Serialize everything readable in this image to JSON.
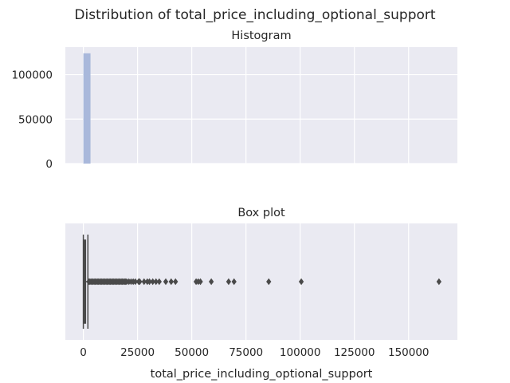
{
  "chart_data": [
    {
      "type": "histogram",
      "suptitle": "Distribution of total_price_including_optional_support",
      "title": "Histogram",
      "bin_start": 0,
      "bin_end": 3300,
      "count": 124000,
      "bar_color": "#a9b8db",
      "y_ticks": [
        0,
        50000,
        100000
      ],
      "ylim": [
        0,
        131000
      ],
      "xlim": [
        -8300,
        172500
      ],
      "grid": true,
      "x_ticks_shared": [
        0,
        25000,
        50000,
        75000,
        100000,
        125000,
        150000
      ]
    },
    {
      "type": "boxplot",
      "title": "Box plot",
      "xlabel": "total_price_including_optional_support",
      "x_ticks": [
        0,
        25000,
        50000,
        75000,
        100000,
        125000,
        150000
      ],
      "xlim": [
        -8300,
        172500
      ],
      "whisker_low": 0,
      "q1": 200,
      "median": 500,
      "q3": 1000,
      "whisker_high": 2100,
      "outliers": [
        2500,
        3000,
        3500,
        4000,
        4500,
        5000,
        5500,
        6000,
        6500,
        7000,
        7500,
        8000,
        8500,
        9000,
        9500,
        10000,
        10500,
        11000,
        11500,
        12000,
        12500,
        13000,
        13500,
        14000,
        14500,
        15000,
        15500,
        16000,
        16500,
        17000,
        17500,
        18000,
        18500,
        19000,
        19500,
        20000,
        21000,
        22000,
        23000,
        24000,
        25500,
        26000,
        28000,
        29500,
        30500,
        32000,
        33500,
        35000,
        38000,
        40500,
        42500,
        52000,
        53000,
        54000,
        59000,
        67000,
        69500,
        85500,
        100500,
        164000
      ],
      "box_color": "#4a4a4a",
      "grid": true
    }
  ]
}
